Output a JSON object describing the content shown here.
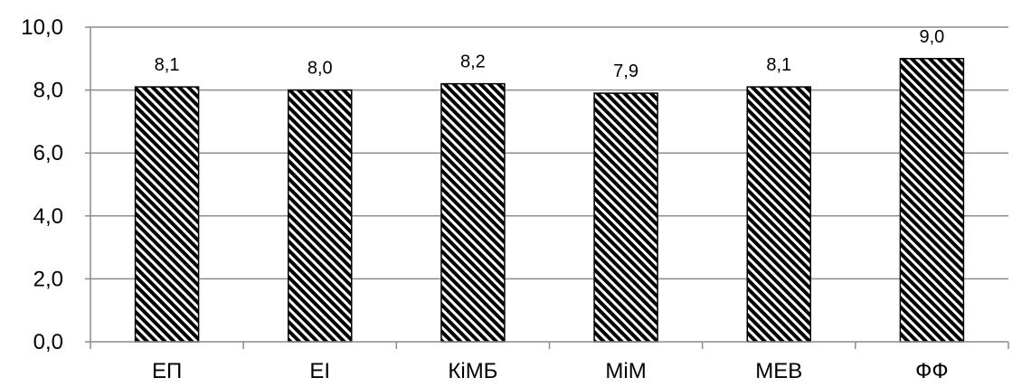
{
  "chart_data": {
    "type": "bar",
    "categories": [
      "ЕП",
      "ЕІ",
      "КіМБ",
      "МіМ",
      "МЕВ",
      "ФФ"
    ],
    "values": [
      8.1,
      8.0,
      8.2,
      7.9,
      8.1,
      9.0
    ],
    "data_labels": [
      "8,1",
      "8,0",
      "8,2",
      "7,9",
      "8,1",
      "9,0"
    ],
    "yticks": [
      0,
      2,
      4,
      6,
      8,
      10
    ],
    "ytick_labels": [
      "0,0",
      "2,0",
      "4,0",
      "6,0",
      "8,0",
      "10,0"
    ],
    "ylim": [
      0,
      10
    ],
    "grid": "horizontal",
    "legend": "none",
    "bar_fill": "diagonal-hatch",
    "colors": {
      "bar_stroke": "#000000",
      "hatch": "#000000",
      "grid": "#8c8c8c",
      "axis": "#8c8c8c"
    }
  }
}
